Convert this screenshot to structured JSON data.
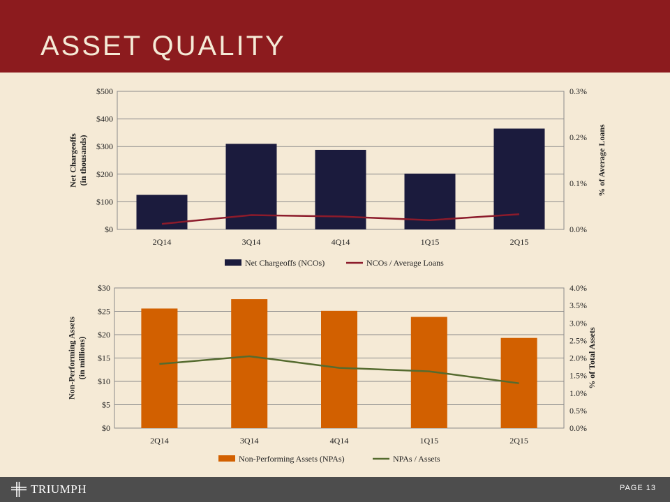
{
  "header": {
    "title": "ASSET QUALITY"
  },
  "colors": {
    "header_bg": "#8c1b1e",
    "background": "#f5ead6",
    "bar_top": "#1b1b3d",
    "line_top": "#8c1b2b",
    "bar_bottom": "#d26000",
    "line_bottom": "#556b2f",
    "footer_bg": "#4d4d4d"
  },
  "chart_data": [
    {
      "type": "bar",
      "categories": [
        "2Q14",
        "3Q14",
        "4Q14",
        "1Q15",
        "2Q15"
      ],
      "series": [
        {
          "name": "Net Chargeoffs (NCOs)",
          "type": "bar",
          "axis": "left",
          "values": [
            125,
            310,
            288,
            202,
            365
          ]
        },
        {
          "name": "NCOs / Average Loans",
          "type": "line",
          "axis": "right",
          "values": [
            0.012,
            0.031,
            0.028,
            0.02,
            0.033
          ]
        }
      ],
      "ylabel": "Net Chargeoffs\n(in thousands)",
      "ylabel_lines": [
        "Net Chargeoffs",
        "(in thousands)"
      ],
      "y2label": "% of Average Loans",
      "ylim": [
        0,
        500
      ],
      "y2lim": [
        0,
        0.3
      ],
      "yticks": [
        "$0",
        "$100",
        "$200",
        "$300",
        "$400",
        "$500"
      ],
      "y2ticks": [
        "0.0%",
        "0.1%",
        "0.2%",
        "0.3%"
      ],
      "grid": true,
      "legend": "bottom"
    },
    {
      "type": "bar",
      "categories": [
        "2Q14",
        "3Q14",
        "4Q14",
        "1Q15",
        "2Q15"
      ],
      "series": [
        {
          "name": "Non-Performing Assets (NPAs)",
          "type": "bar",
          "axis": "left",
          "values": [
            25.6,
            27.6,
            25.1,
            23.8,
            19.3
          ]
        },
        {
          "name": "NPAs / Assets",
          "type": "line",
          "axis": "right",
          "values": [
            1.83,
            2.05,
            1.72,
            1.62,
            1.28
          ]
        }
      ],
      "ylabel": "Non-Performing Assets\n(in millions)",
      "ylabel_lines": [
        "Non-Performing Assets",
        "(in millions)"
      ],
      "y2label": "% of Total Assets",
      "ylim": [
        0,
        30
      ],
      "y2lim": [
        0,
        4.0
      ],
      "yticks": [
        "$0",
        "$5",
        "$10",
        "$15",
        "$20",
        "$25",
        "$30"
      ],
      "y2ticks": [
        "0.0%",
        "0.5%",
        "1.0%",
        "1.5%",
        "2.0%",
        "2.5%",
        "3.0%",
        "3.5%",
        "4.0%"
      ],
      "grid": true,
      "legend": "bottom"
    }
  ],
  "footer": {
    "logo_text": "TRIUMPH",
    "page_label": "PAGE 13"
  }
}
